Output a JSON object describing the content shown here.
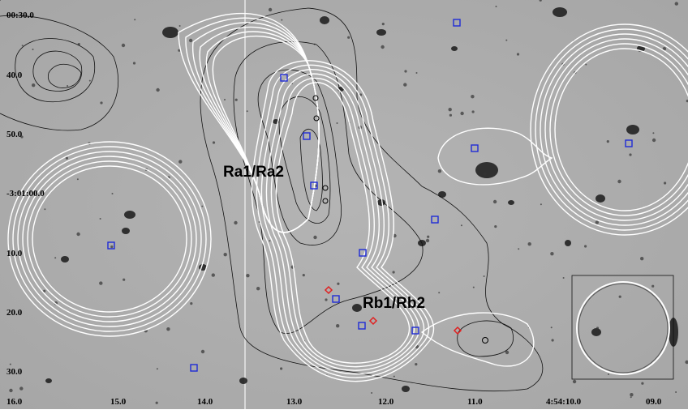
{
  "y_axis_labels": [
    "00:30.0",
    "40.0",
    "50.0",
    "-3:01:00.0",
    "10.0",
    "20.0",
    "30.0"
  ],
  "x_axis_labels": [
    "16.0",
    "15.0",
    "14.0",
    "13.0",
    "12.0",
    "11.0",
    "4:54:10.0",
    "09.0"
  ],
  "annotations": [
    "Ra1/Ra2",
    "Rb1/Rb2"
  ]
}
